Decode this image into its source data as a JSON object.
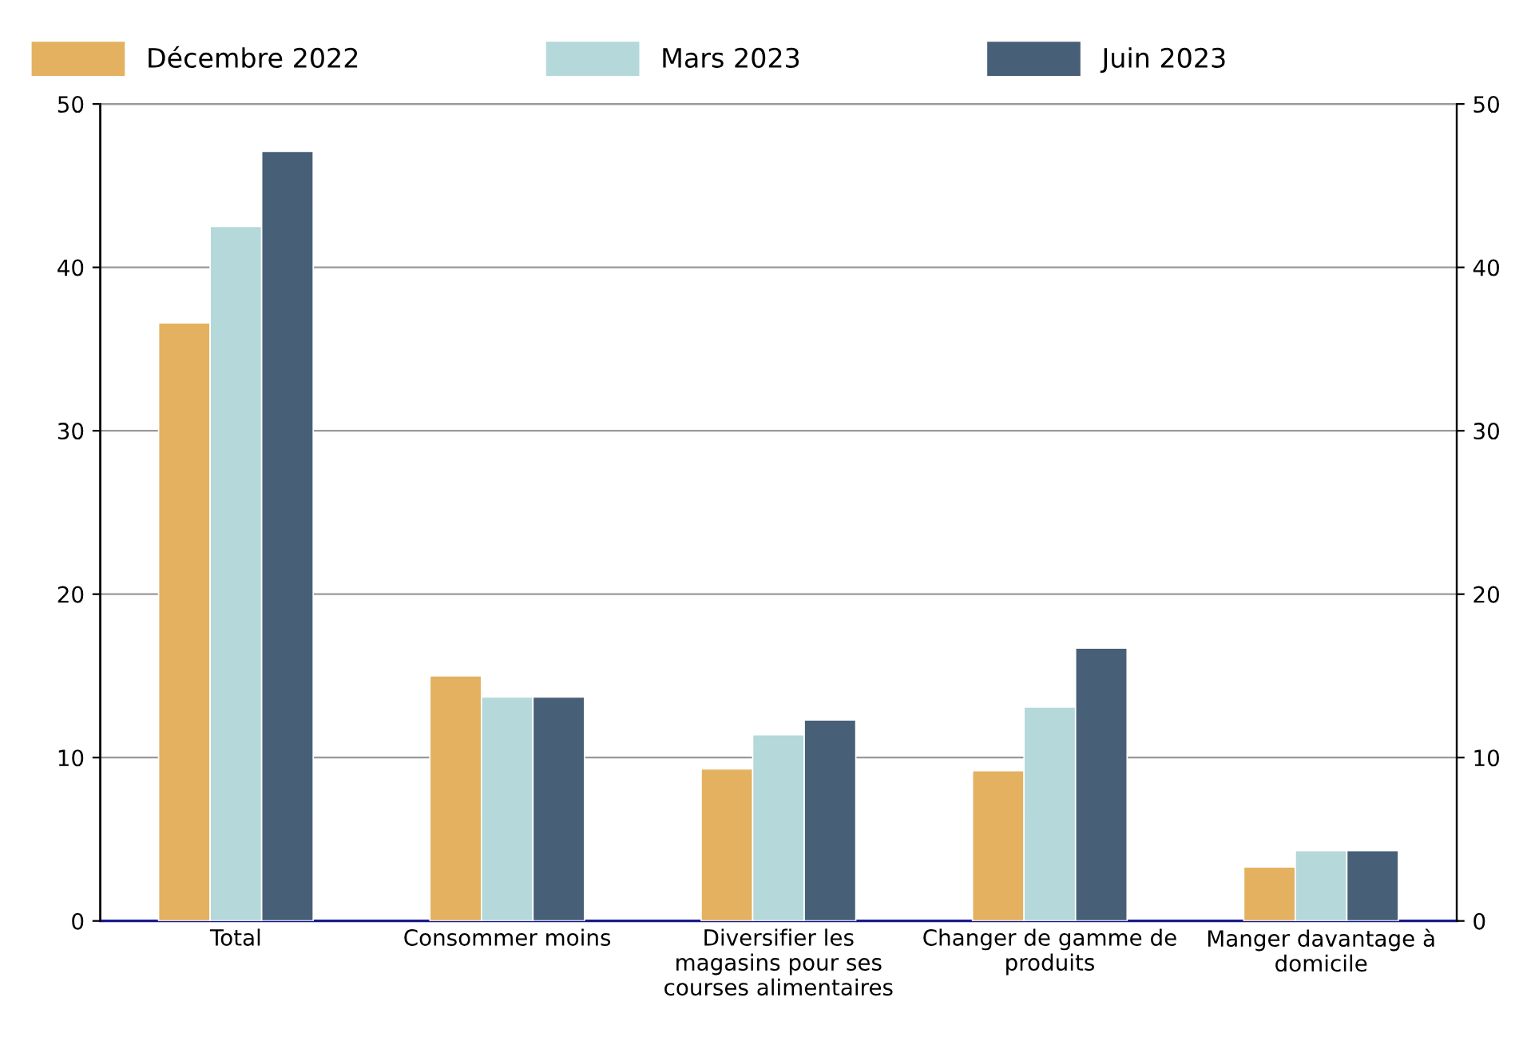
{
  "chart_data": {
    "type": "bar",
    "categories": [
      "Total",
      "Consommer moins",
      "Diversifier les\nmagasins pour ses\ncourses alimentaires",
      "Changer de gamme de\nproduits",
      "Manger davantage à\ndomicile"
    ],
    "series": [
      {
        "name": "Décembre 2022",
        "color": "#e3b160",
        "values": [
          36.6,
          15.0,
          9.3,
          9.2,
          3.3
        ]
      },
      {
        "name": "Mars 2023",
        "color": "#b5d8da",
        "values": [
          42.5,
          13.7,
          11.4,
          13.1,
          4.3
        ]
      },
      {
        "name": "Juin 2023",
        "color": "#485f78",
        "values": [
          47.1,
          13.7,
          12.3,
          16.7,
          4.3
        ]
      }
    ],
    "ylim": [
      0,
      50
    ],
    "yticks": [
      0,
      10,
      20,
      30,
      40,
      50
    ],
    "y2lim": [
      0,
      50
    ],
    "y2ticks": [
      0,
      10,
      20,
      30,
      40,
      50
    ],
    "grid": "y",
    "legend": "top"
  }
}
